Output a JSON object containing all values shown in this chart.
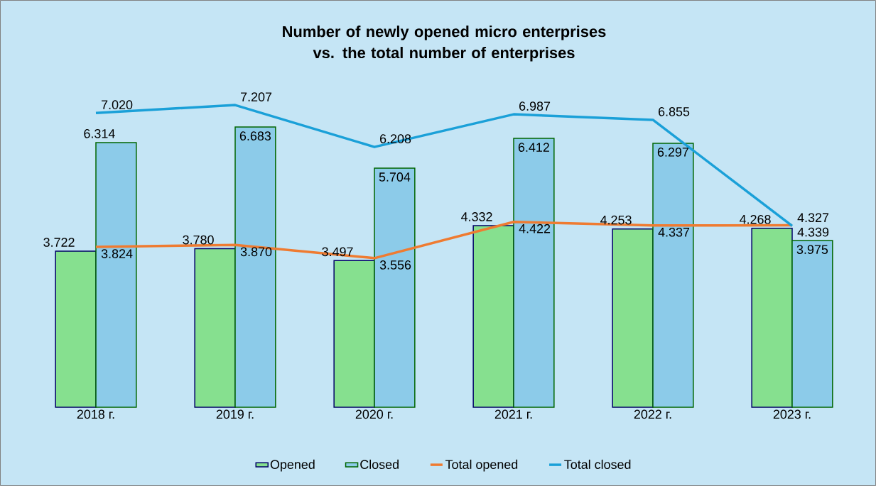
{
  "chart_data": {
    "type": "bar",
    "title": "Number of newly opened micro enterprises vs. the total number of enterprises",
    "categories": [
      "2018 г.",
      "2019 г.",
      "2020 г.",
      "2021 г.",
      "2022 г.",
      "2023 г."
    ],
    "series": [
      {
        "name": "Opened",
        "color": "#86e08f",
        "values": [
          3.722,
          3.78,
          3.497,
          4.332,
          4.253,
          4.268
        ],
        "value_labels": [
          "3.722",
          "3.780",
          "3.497",
          "4.332",
          "4.253",
          "4.268"
        ]
      },
      {
        "name": "Closed",
        "color": "#8ccbe9",
        "values": [
          6.314,
          6.683,
          5.704,
          6.412,
          6.297,
          3.975
        ],
        "value_labels": [
          "6.314",
          "6.683",
          "5.704",
          "6.412",
          "6.297",
          "3.975"
        ]
      },
      {
        "name": "Total opened",
        "type": "line",
        "color": "#ef7b31",
        "values": [
          3.824,
          3.87,
          3.556,
          4.422,
          4.337,
          4.339
        ],
        "value_labels": [
          "3.824",
          "3.870",
          "3.556",
          "4.422",
          "4.337",
          "4.339"
        ]
      },
      {
        "name": "Total closed",
        "type": "line",
        "color": "#1aa0d8",
        "values": [
          7.02,
          7.207,
          6.208,
          6.987,
          6.855,
          4.327
        ],
        "value_labels": [
          "7.020",
          "7.207",
          "6.208",
          "6.987",
          "6.855",
          "4.327"
        ]
      }
    ],
    "legend": "bottom"
  }
}
